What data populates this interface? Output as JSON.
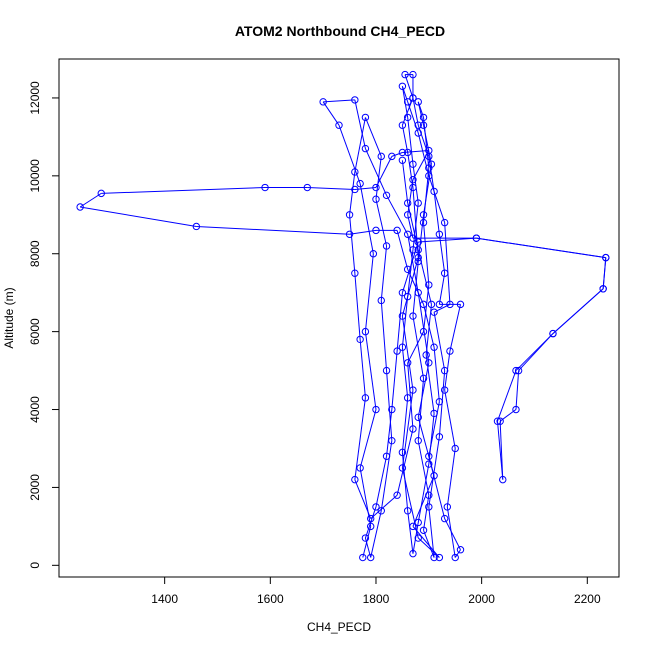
{
  "chart_data": {
    "type": "line",
    "title": "ATOM2 Northbound CH4_PECD",
    "xlabel": "CH4_PECD",
    "ylabel": "Altitude (m)",
    "xlim": [
      1200,
      2260
    ],
    "ylim": [
      -300,
      13000
    ],
    "x_ticks": [
      1400,
      1600,
      1800,
      2000,
      2200
    ],
    "y_ticks": [
      0,
      2000,
      4000,
      6000,
      8000,
      10000,
      12000
    ],
    "series_color": "#0000ff",
    "marker": "open-circle",
    "series": [
      {
        "values": [
          [
            1775,
            200
          ],
          [
            1790,
            1000
          ],
          [
            1770,
            2500
          ],
          [
            1800,
            4000
          ],
          [
            1780,
            6000
          ],
          [
            1795,
            8000
          ],
          [
            1770,
            9800
          ],
          [
            1730,
            11300
          ],
          [
            1700,
            11900
          ],
          [
            1760,
            11950
          ],
          [
            1780,
            10700
          ],
          [
            1820,
            9500
          ],
          [
            1860,
            8500
          ],
          [
            1880,
            7000
          ],
          [
            1900,
            5200
          ],
          [
            1880,
            3800
          ],
          [
            1910,
            2300
          ],
          [
            1870,
            1000
          ],
          [
            1920,
            200
          ],
          [
            1880,
            700
          ],
          [
            1850,
            2500
          ],
          [
            1870,
            4500
          ],
          [
            1850,
            6400
          ],
          [
            1880,
            7900
          ],
          [
            1870,
            9700
          ],
          [
            1860,
            10600
          ],
          [
            1850,
            11300
          ],
          [
            1870,
            12000
          ],
          [
            1855,
            12600
          ],
          [
            1870,
            12600
          ],
          [
            1870,
            12000
          ],
          [
            1880,
            11300
          ],
          [
            1900,
            10500
          ],
          [
            1910,
            9600
          ],
          [
            1920,
            8500
          ],
          [
            1930,
            7500
          ],
          [
            1920,
            6700
          ],
          [
            1960,
            6700
          ],
          [
            1940,
            5500
          ],
          [
            1930,
            4500
          ],
          [
            1950,
            3000
          ],
          [
            1935,
            1500
          ],
          [
            1950,
            200
          ],
          [
            1960,
            400
          ],
          [
            1930,
            1200
          ],
          [
            1900,
            2800
          ],
          [
            1920,
            4200
          ],
          [
            1910,
            5600
          ],
          [
            1890,
            6700
          ],
          [
            1860,
            7600
          ],
          [
            1840,
            8600
          ],
          [
            1800,
            8600
          ],
          [
            1750,
            8500
          ],
          [
            1460,
            8700
          ],
          [
            1240,
            9200
          ],
          [
            1280,
            9550
          ],
          [
            1590,
            9700
          ],
          [
            1670,
            9700
          ],
          [
            1760,
            9650
          ],
          [
            1800,
            9700
          ],
          [
            1830,
            10500
          ],
          [
            1850,
            10600
          ],
          [
            1900,
            10650
          ],
          [
            1870,
            9900
          ],
          [
            1860,
            9000
          ],
          [
            1870,
            8400
          ],
          [
            1990,
            8400
          ],
          [
            2235,
            7900
          ],
          [
            2230,
            7100
          ],
          [
            2135,
            5950
          ],
          [
            2065,
            5000
          ],
          [
            2030,
            3700
          ],
          [
            2040,
            2200
          ],
          [
            2035,
            3700
          ],
          [
            2065,
            4000
          ],
          [
            2070,
            5000
          ],
          [
            2135,
            5950
          ],
          [
            2230,
            7100
          ],
          [
            2235,
            7900
          ],
          [
            1990,
            8400
          ],
          [
            1880,
            8300
          ],
          [
            1850,
            7000
          ],
          [
            1840,
            5500
          ],
          [
            1830,
            4000
          ],
          [
            1820,
            2800
          ],
          [
            1800,
            1500
          ],
          [
            1780,
            700
          ],
          [
            1790,
            200
          ],
          [
            1810,
            1400
          ],
          [
            1830,
            3200
          ],
          [
            1820,
            5000
          ],
          [
            1810,
            6800
          ],
          [
            1820,
            8200
          ],
          [
            1800,
            9400
          ],
          [
            1810,
            10500
          ],
          [
            1780,
            11500
          ],
          [
            1760,
            10100
          ],
          [
            1750,
            9000
          ],
          [
            1760,
            7500
          ],
          [
            1770,
            5800
          ],
          [
            1780,
            4300
          ],
          [
            1760,
            2200
          ],
          [
            1790,
            1200
          ],
          [
            1840,
            1800
          ],
          [
            1870,
            3500
          ],
          [
            1860,
            5200
          ],
          [
            1890,
            6000
          ],
          [
            1900,
            7200
          ],
          [
            1890,
            8800
          ],
          [
            1900,
            10200
          ],
          [
            1890,
            11500
          ],
          [
            1880,
            11900
          ],
          [
            1890,
            11300
          ],
          [
            1905,
            10300
          ],
          [
            1890,
            9000
          ],
          [
            1880,
            7800
          ],
          [
            1870,
            6400
          ],
          [
            1890,
            4800
          ],
          [
            1880,
            3200
          ],
          [
            1900,
            1800
          ],
          [
            1890,
            900
          ],
          [
            1910,
            200
          ],
          [
            1900,
            1500
          ],
          [
            1920,
            3300
          ],
          [
            1930,
            5000
          ],
          [
            1910,
            6500
          ],
          [
            1940,
            6700
          ],
          [
            1930,
            8800
          ],
          [
            1900,
            10000
          ],
          [
            1880,
            11100
          ],
          [
            1860,
            11900
          ],
          [
            1850,
            12300
          ],
          [
            1860,
            11500
          ],
          [
            1870,
            10300
          ],
          [
            1880,
            9300
          ],
          [
            1870,
            8100
          ],
          [
            1860,
            6900
          ],
          [
            1850,
            5600
          ],
          [
            1860,
            4300
          ],
          [
            1850,
            2900
          ],
          [
            1860,
            1400
          ],
          [
            1870,
            300
          ],
          [
            1880,
            1100
          ],
          [
            1900,
            2600
          ],
          [
            1910,
            3900
          ],
          [
            1895,
            5400
          ],
          [
            1905,
            6700
          ],
          [
            1880,
            8100
          ],
          [
            1860,
            9300
          ],
          [
            1850,
            10400
          ]
        ]
      }
    ]
  }
}
